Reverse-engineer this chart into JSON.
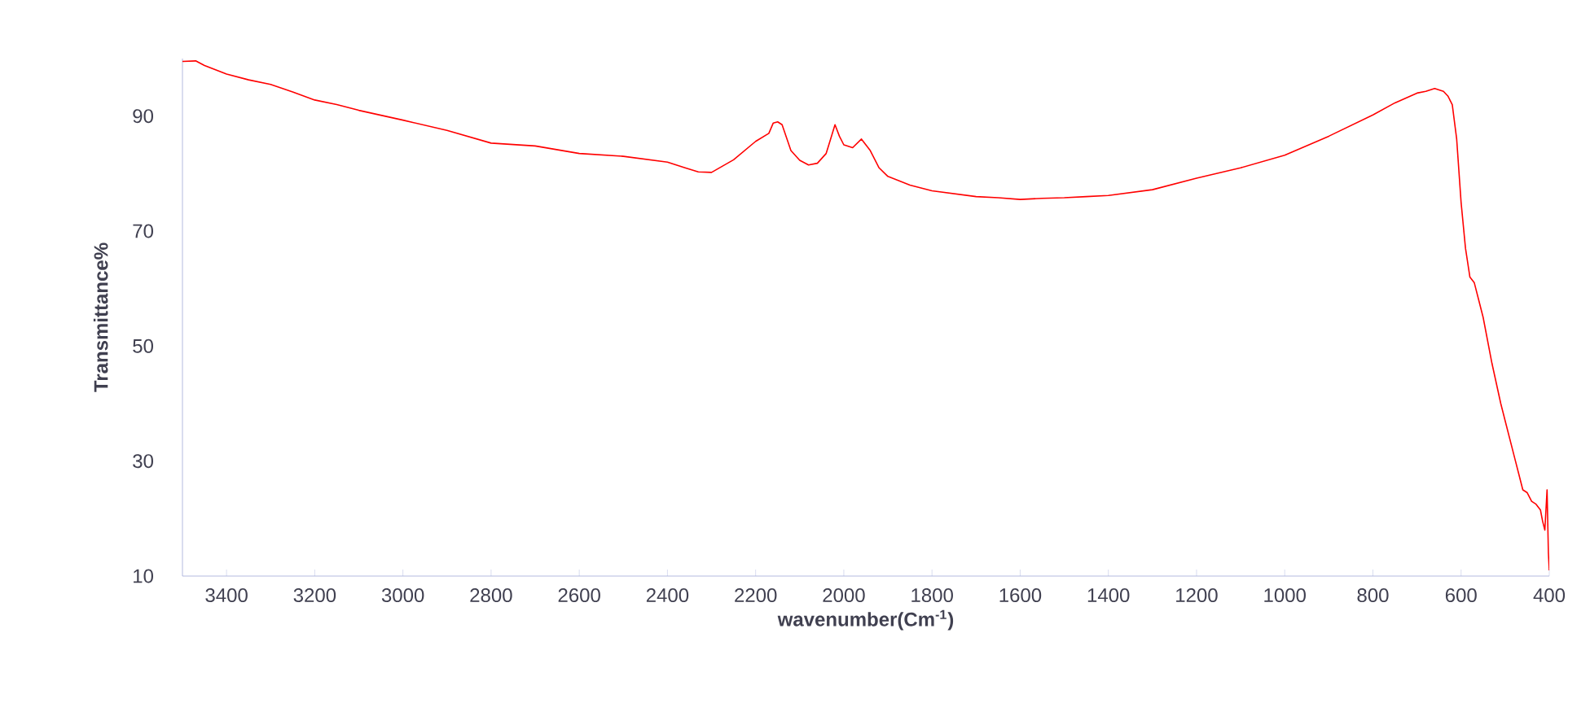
{
  "chart_data": {
    "type": "line",
    "xlabel": "wavenumber(Cm$^{-1}$)",
    "ylabel": "Transmittance%",
    "xlim": [
      3500,
      400
    ],
    "ylim": [
      10,
      100
    ],
    "xticks": [
      3400,
      3200,
      3000,
      2800,
      2600,
      2400,
      2200,
      2000,
      1800,
      1600,
      1400,
      1200,
      1000,
      800,
      600,
      400
    ],
    "yticks": [
      10,
      30,
      50,
      70,
      90
    ],
    "grid": false,
    "marker": "none",
    "line_style": "solid",
    "series": [
      {
        "color": "#ff0000",
        "x": [
          3500,
          3470,
          3450,
          3400,
          3350,
          3300,
          3250,
          3200,
          3150,
          3100,
          3000,
          2900,
          2800,
          2700,
          2600,
          2500,
          2400,
          2360,
          2330,
          2300,
          2250,
          2200,
          2170,
          2160,
          2150,
          2140,
          2120,
          2100,
          2080,
          2060,
          2040,
          2030,
          2020,
          2010,
          2000,
          1980,
          1960,
          1940,
          1920,
          1900,
          1850,
          1800,
          1750,
          1700,
          1650,
          1600,
          1550,
          1500,
          1450,
          1400,
          1300,
          1200,
          1100,
          1000,
          900,
          800,
          750,
          700,
          680,
          660,
          640,
          630,
          620,
          610,
          600,
          590,
          580,
          570,
          560,
          550,
          530,
          510,
          500,
          480,
          470,
          460,
          450,
          440,
          430,
          420,
          415,
          410,
          405,
          402,
          400
        ],
        "values": [
          99.5,
          99.6,
          98.8,
          97.3,
          96.3,
          95.5,
          94.2,
          92.8,
          92,
          91,
          89.3,
          87.5,
          85.3,
          84.8,
          83.5,
          83,
          82,
          81,
          80.3,
          80.2,
          82.4,
          85.6,
          87,
          88.8,
          89,
          88.5,
          84,
          82.3,
          81.5,
          81.8,
          83.5,
          86,
          88.5,
          86.5,
          85,
          84.5,
          86,
          84,
          81,
          79.5,
          78,
          77,
          76.5,
          76,
          75.8,
          75.5,
          75.7,
          75.8,
          76,
          76.2,
          77.2,
          79.2,
          81,
          83.2,
          86.5,
          90.2,
          92.3,
          94,
          94.3,
          94.8,
          94.3,
          93.5,
          92,
          86,
          75,
          67,
          62,
          61,
          58,
          55,
          47,
          40,
          37,
          31,
          28,
          25,
          24.5,
          23,
          22.5,
          21.5,
          19.5,
          18,
          25,
          14,
          11
        ]
      }
    ]
  }
}
